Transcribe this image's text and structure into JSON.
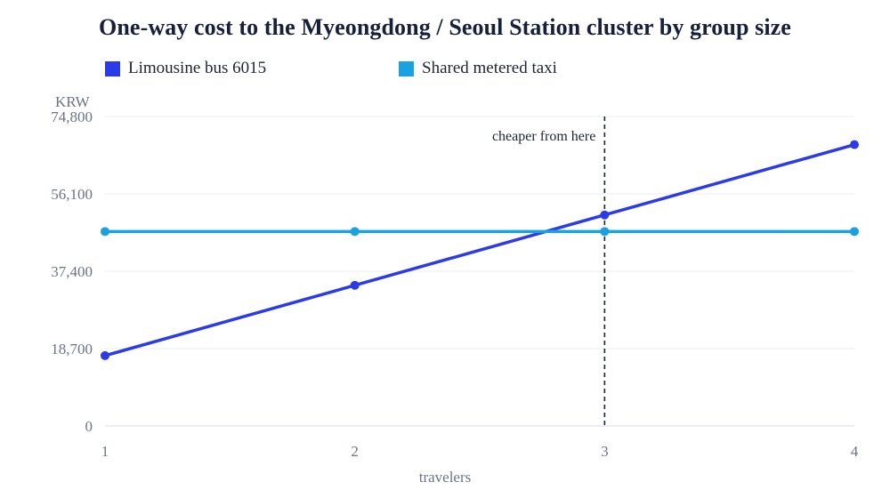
{
  "chart_data": {
    "type": "line",
    "title": "One-way cost to the Myeongdong / Seoul Station cluster by group size",
    "xlabel": "travelers",
    "ylabel": "KRW",
    "x": [
      1,
      2,
      3,
      4
    ],
    "x_tick_labels": [
      "1",
      "2",
      "3",
      "4"
    ],
    "xlim": [
      1,
      4
    ],
    "ylim": [
      0,
      74800
    ],
    "y_ticks": [
      0,
      18700,
      37400,
      56100,
      74800
    ],
    "y_tick_labels": [
      "0",
      "18,700",
      "37,400",
      "56,100",
      "74,800"
    ],
    "grid": true,
    "legend_position": "top-left",
    "series": [
      {
        "name": "Limousine bus 6015",
        "color": "#2b3be6",
        "values": [
          17000,
          34000,
          51000,
          68000
        ]
      },
      {
        "name": "Shared metered taxi",
        "color": "#19a1e0",
        "values": [
          47000,
          47000,
          47000,
          47000
        ]
      }
    ],
    "annotations": [
      {
        "type": "vertical-line",
        "x": 3,
        "style": "dashed",
        "text": "cheaper from here"
      }
    ]
  }
}
